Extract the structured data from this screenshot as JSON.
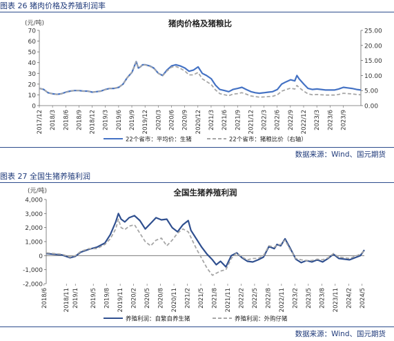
{
  "figures": [
    {
      "caption": "图表 26 猪肉价格及养殖利润率",
      "source": "数据来源：Wind、国元期货"
    },
    {
      "caption": "图表 27 全国生猪养殖利润",
      "source": "数据来源：Wind、国元期货"
    }
  ],
  "colors": {
    "primary": "#4472c4",
    "dark_blue": "#1f3a7a",
    "gray": "#a6a6a6",
    "navy": "#2f4f8f"
  },
  "chart_data": [
    {
      "type": "line",
      "title": "猪肉价格及猪粮比",
      "left_unit": "(元/吨)",
      "ylim_left": [
        0,
        70
      ],
      "yticks_left": [
        "0",
        "10",
        "20",
        "30",
        "40",
        "50",
        "60",
        "70"
      ],
      "ylim_right": [
        0,
        25
      ],
      "yticks_right": [
        "0.00",
        "5.00",
        "10.00",
        "15.00",
        "20.00",
        "25.00"
      ],
      "xlim": [
        2017.917,
        2024.0
      ],
      "xticks": [
        "2017/12",
        "2018/3",
        "2018/6",
        "2018/9",
        "2018/12",
        "2019/3",
        "2019/6",
        "2019/9",
        "2019/12",
        "2020/3",
        "2020/6",
        "2020/9",
        "2020/12",
        "2021/3",
        "2021/6",
        "2021/9",
        "2021/12",
        "2022/3",
        "2022/6",
        "2022/9",
        "2022/12",
        "2023/3",
        "2023/6",
        "2023/9"
      ],
      "series": [
        {
          "name": "22个省市：平均价：生猪",
          "axis": "left",
          "style": "solid",
          "x": [
            2017.92,
            2018.0,
            2018.08,
            2018.17,
            2018.25,
            2018.33,
            2018.42,
            2018.5,
            2018.58,
            2018.67,
            2018.75,
            2018.83,
            2018.92,
            2019.0,
            2019.08,
            2019.17,
            2019.25,
            2019.33,
            2019.42,
            2019.5,
            2019.58,
            2019.67,
            2019.75,
            2019.79,
            2019.83,
            2019.87,
            2019.92,
            2020.0,
            2020.08,
            2020.17,
            2020.25,
            2020.33,
            2020.42,
            2020.5,
            2020.58,
            2020.67,
            2020.75,
            2020.83,
            2020.92,
            2021.0,
            2021.08,
            2021.17,
            2021.25,
            2021.33,
            2021.42,
            2021.5,
            2021.58,
            2021.67,
            2021.75,
            2021.83,
            2021.92,
            2022.0,
            2022.08,
            2022.17,
            2022.25,
            2022.33,
            2022.42,
            2022.5,
            2022.58,
            2022.67,
            2022.75,
            2022.79,
            2022.83,
            2022.92,
            2023.0,
            2023.08,
            2023.17,
            2023.25,
            2023.33,
            2023.42,
            2023.5,
            2023.58,
            2023.67,
            2023.75,
            2023.83,
            2023.92,
            2024.0
          ],
          "values": [
            16,
            15,
            12,
            11,
            10.5,
            11,
            12.5,
            13.5,
            14,
            14,
            13.5,
            13.5,
            12.5,
            13,
            13.5,
            15,
            16,
            16,
            17,
            20,
            26,
            31,
            41,
            35,
            36,
            38,
            38,
            37,
            35,
            30,
            28,
            33,
            37,
            38,
            37,
            35,
            32,
            33,
            36,
            30,
            28,
            25,
            19,
            15,
            14,
            13,
            15,
            16,
            17,
            15,
            13,
            12,
            11.5,
            12,
            12.5,
            13,
            15,
            20,
            22,
            24,
            23,
            28,
            25,
            20,
            16,
            15,
            15.5,
            15,
            14.5,
            14.5,
            14.5,
            15.5,
            17,
            16.5,
            16,
            15,
            14.5
          ]
        },
        {
          "name": "22个省市：猪粮比价（右轴）",
          "axis": "right",
          "style": "dashed",
          "x": [
            2017.92,
            2018.0,
            2018.08,
            2018.17,
            2018.25,
            2018.33,
            2018.42,
            2018.5,
            2018.58,
            2018.67,
            2018.75,
            2018.83,
            2018.92,
            2019.0,
            2019.08,
            2019.17,
            2019.25,
            2019.33,
            2019.42,
            2019.5,
            2019.58,
            2019.67,
            2019.75,
            2019.79,
            2019.83,
            2019.87,
            2019.92,
            2020.0,
            2020.08,
            2020.17,
            2020.25,
            2020.33,
            2020.42,
            2020.5,
            2020.58,
            2020.67,
            2020.75,
            2020.83,
            2020.92,
            2021.0,
            2021.08,
            2021.17,
            2021.25,
            2021.33,
            2021.42,
            2021.5,
            2021.58,
            2021.67,
            2021.75,
            2021.83,
            2021.92,
            2022.0,
            2022.08,
            2022.17,
            2022.25,
            2022.33,
            2022.42,
            2022.5,
            2022.58,
            2022.67,
            2022.75,
            2022.79,
            2022.83,
            2022.92,
            2023.0,
            2023.08,
            2023.17,
            2023.25,
            2023.33,
            2023.42,
            2023.5,
            2023.58,
            2023.67,
            2023.75,
            2023.83,
            2023.92,
            2024.0
          ],
          "values": [
            5.7,
            5.4,
            4.3,
            3.9,
            3.7,
            3.9,
            4.4,
            4.8,
            5.0,
            5.0,
            4.8,
            4.8,
            4.5,
            4.6,
            4.8,
            5.3,
            5.7,
            5.8,
            6.1,
            7.1,
            9.3,
            11.2,
            14.6,
            12.5,
            12.9,
            13.6,
            13.5,
            13.1,
            12.4,
            10.7,
            9.9,
            11.5,
            12.8,
            13.0,
            12.4,
            11.5,
            10.2,
            10.2,
            11.0,
            8.9,
            8.0,
            7.0,
            5.2,
            4.0,
            3.6,
            3.3,
            3.8,
            4.0,
            4.3,
            3.8,
            3.2,
            3.0,
            2.8,
            2.9,
            3.0,
            3.1,
            3.6,
            4.8,
            5.3,
            5.8,
            5.5,
            6.7,
            6.0,
            4.8,
            3.9,
            3.6,
            3.7,
            3.6,
            3.5,
            3.5,
            3.5,
            3.7,
            4.1,
            4.0,
            3.9,
            3.7,
            3.6
          ]
        }
      ]
    },
    {
      "type": "line",
      "title": "全国生猪养殖利润",
      "left_unit": "(元/吨)",
      "ylim": [
        -2000,
        4000
      ],
      "yticks": [
        "-2,000",
        "-1,000",
        "0",
        "1,000",
        "2,000",
        "3,000",
        "4,000"
      ],
      "xlim": [
        2018.458,
        2024.375
      ],
      "xticks": [
        "2018/6",
        "2018/11",
        "2019/1",
        "2019/5",
        "2019/8",
        "2019/11",
        "2020/2",
        "2020/5",
        "2020/8",
        "2020/11",
        "2021/2",
        "2021/5",
        "2021/8",
        "2021/11",
        "2022/2",
        "2022/5",
        "2022/8",
        "2022/11",
        "2023/2",
        "2023/5",
        "2023/8",
        "2023/11",
        "2024/2",
        "2024/5"
      ],
      "series": [
        {
          "name": "养殖利润：自繁自养生猪",
          "style": "solid",
          "x": [
            2018.46,
            2018.6,
            2018.75,
            2018.9,
            2019.0,
            2019.1,
            2019.25,
            2019.4,
            2019.55,
            2019.65,
            2019.75,
            2019.8,
            2019.85,
            2019.92,
            2020.0,
            2020.1,
            2020.2,
            2020.3,
            2020.4,
            2020.5,
            2020.6,
            2020.7,
            2020.8,
            2020.9,
            2021.0,
            2021.1,
            2021.15,
            2021.25,
            2021.35,
            2021.45,
            2021.55,
            2021.62,
            2021.7,
            2021.8,
            2021.9,
            2022.0,
            2022.1,
            2022.2,
            2022.3,
            2022.4,
            2022.5,
            2022.6,
            2022.7,
            2022.75,
            2022.82,
            2022.9,
            2023.0,
            2023.1,
            2023.2,
            2023.3,
            2023.4,
            2023.5,
            2023.6,
            2023.7,
            2023.8,
            2023.9,
            2024.0,
            2024.1,
            2024.2,
            2024.3,
            2024.375
          ],
          "values": [
            150,
            100,
            50,
            -150,
            -50,
            250,
            450,
            600,
            900,
            1500,
            2400,
            3000,
            2600,
            2400,
            2700,
            2850,
            2500,
            1900,
            2300,
            2700,
            2550,
            2600,
            2000,
            1700,
            2200,
            2500,
            1800,
            1200,
            600,
            100,
            -300,
            -650,
            -400,
            -800,
            0,
            200,
            -150,
            -400,
            -450,
            -300,
            -100,
            650,
            500,
            800,
            700,
            1200,
            500,
            -250,
            -500,
            -350,
            -450,
            -300,
            -450,
            -200,
            100,
            -200,
            -250,
            -300,
            -150,
            0,
            400
          ]
        },
        {
          "name": "养殖利润：外购仔猪",
          "style": "dashed",
          "x": [
            2018.46,
            2018.6,
            2018.75,
            2018.9,
            2019.0,
            2019.1,
            2019.25,
            2019.4,
            2019.55,
            2019.65,
            2019.75,
            2019.8,
            2019.85,
            2019.92,
            2020.0,
            2020.1,
            2020.2,
            2020.3,
            2020.4,
            2020.5,
            2020.6,
            2020.7,
            2020.8,
            2020.9,
            2021.0,
            2021.1,
            2021.15,
            2021.25,
            2021.35,
            2021.45,
            2021.55,
            2021.62,
            2021.7,
            2021.8,
            2021.9,
            2022.0,
            2022.1,
            2022.2,
            2022.3,
            2022.4,
            2022.5,
            2022.6,
            2022.7,
            2022.75,
            2022.82,
            2022.9,
            2023.0,
            2023.1,
            2023.2,
            2023.3,
            2023.4,
            2023.5,
            2023.6,
            2023.7,
            2023.8,
            2023.9,
            2024.0,
            2024.1,
            2024.2,
            2024.3,
            2024.375
          ],
          "values": [
            200,
            150,
            100,
            -100,
            0,
            300,
            500,
            500,
            800,
            1200,
            1900,
            2600,
            2000,
            1850,
            2100,
            2200,
            1600,
            1000,
            700,
            1100,
            1250,
            700,
            1100,
            1600,
            1900,
            1700,
            1300,
            500,
            -200,
            -900,
            -1400,
            -1250,
            -1100,
            -1000,
            -200,
            200,
            -100,
            -300,
            -200,
            -200,
            0,
            700,
            600,
            750,
            800,
            1100,
            400,
            -200,
            -300,
            -350,
            -350,
            -250,
            -300,
            -150,
            150,
            -100,
            -150,
            -200,
            -50,
            100,
            350
          ]
        }
      ]
    }
  ]
}
